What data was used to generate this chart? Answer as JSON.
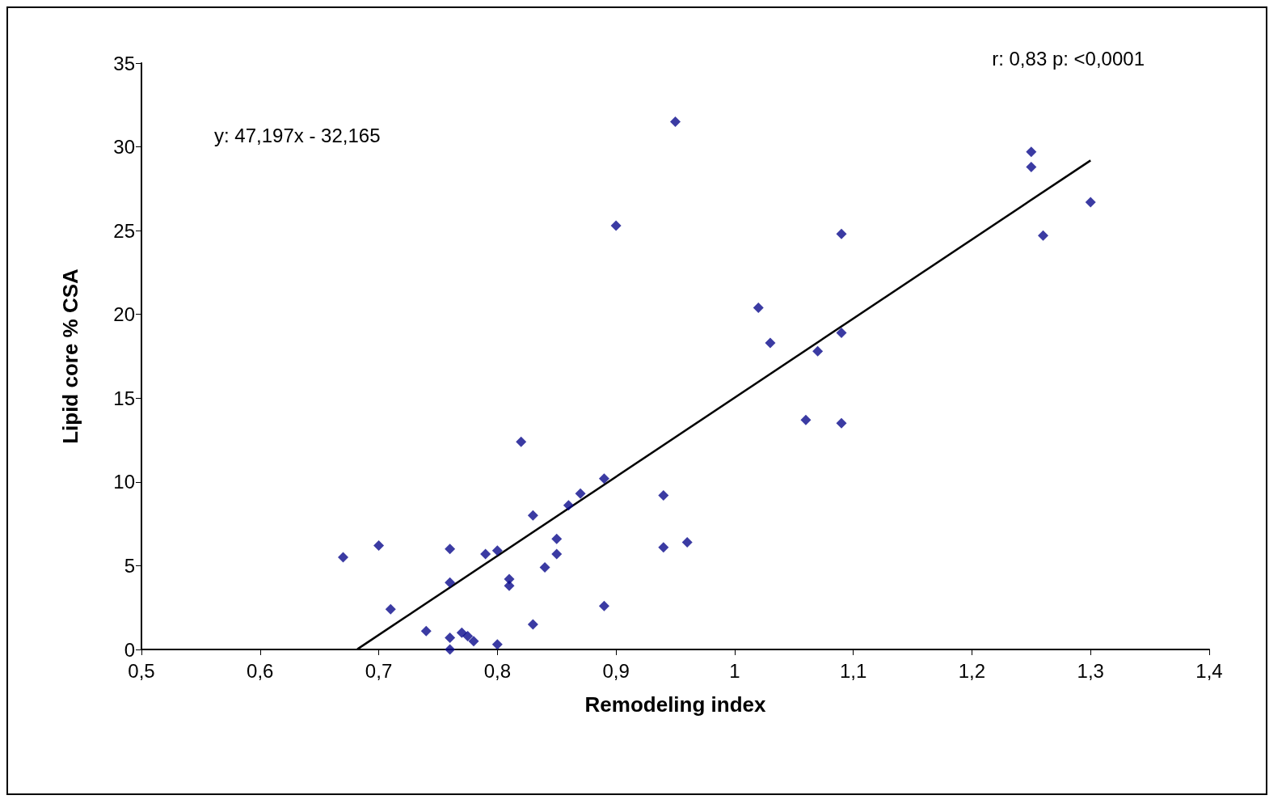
{
  "chart_data": {
    "type": "scatter",
    "xlabel": "Remodeling index",
    "ylabel": "Lipid core % CSA",
    "annotations": [
      "y: 47,197x - 32,165",
      "r: 0,83 p: <0,0001"
    ],
    "xlim": [
      0.5,
      1.4
    ],
    "xticks": [
      {
        "value": 0.5,
        "label": "0,5"
      },
      {
        "value": 0.6,
        "label": "0,6"
      },
      {
        "value": 0.7,
        "label": "0,7"
      },
      {
        "value": 0.8,
        "label": "0,8"
      },
      {
        "value": 0.9,
        "label": "0,9"
      },
      1,
      {
        "value": 1.1,
        "label": "1,1"
      },
      {
        "value": 1.2,
        "label": "1,2"
      },
      {
        "value": 1.3,
        "label": "1,3"
      },
      {
        "value": 1.4,
        "label": "1,4"
      }
    ],
    "ylim": [
      0,
      35
    ],
    "yticks": [
      0,
      5,
      10,
      15,
      20,
      25,
      30,
      35
    ],
    "grid": false,
    "marker": "diamond",
    "series": [
      {
        "color": "#0a0a8c",
        "x": [
          0.67,
          0.7,
          0.71,
          0.74,
          0.76,
          0.76,
          0.76,
          0.76,
          0.77,
          0.775,
          0.78,
          0.79,
          0.8,
          0.8,
          0.81,
          0.81,
          0.82,
          0.83,
          0.83,
          0.84,
          0.85,
          0.85,
          0.86,
          0.87,
          0.89,
          0.89,
          0.9,
          0.94,
          0.94,
          0.95,
          0.96,
          1.02,
          1.03,
          1.06,
          1.07,
          1.09,
          1.09,
          1.09,
          1.25,
          1.25,
          1.26,
          1.3
        ],
        "values": [
          5.5,
          6.2,
          2.4,
          1.1,
          6.0,
          4.0,
          0.7,
          0,
          1.0,
          0.8,
          0.5,
          5.7,
          5.9,
          0.3,
          4.2,
          3.8,
          12.4,
          8.0,
          1.5,
          4.9,
          6.6,
          5.7,
          8.6,
          9.3,
          10.2,
          2.6,
          25.3,
          9.2,
          6.1,
          31.5,
          6.4,
          20.4,
          18.3,
          13.7,
          17.8,
          24.8,
          18.9,
          13.5,
          29.7,
          28.8,
          24.7,
          26.7
        ]
      },
      {
        "type": "line",
        "color": "#000000",
        "marker": "none",
        "x": [
          0.682,
          1.3
        ],
        "values": [
          0.02,
          29.19
        ]
      }
    ]
  }
}
